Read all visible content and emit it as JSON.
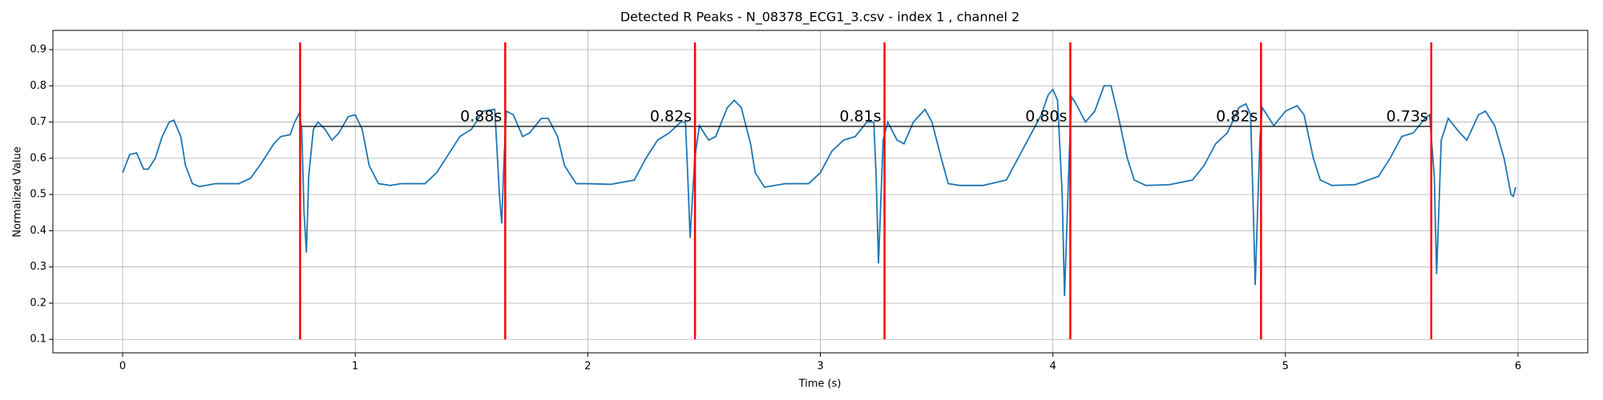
{
  "chart_data": {
    "type": "line",
    "title": "Detected R Peaks - N_08378_ECG1_3.csv - index 1 , channel 2",
    "xlabel": "Time (s)",
    "ylabel": "Normalized Value",
    "x": [
      0,
      0.03,
      0.06,
      0.09,
      0.11,
      0.14,
      0.17,
      0.2,
      0.22,
      0.25,
      0.27,
      0.3,
      0.33,
      0.4,
      0.5,
      0.55,
      0.6,
      0.65,
      0.68,
      0.72,
      0.74,
      0.76,
      0.77,
      0.78,
      0.79,
      0.8,
      0.82,
      0.84,
      0.87,
      0.9,
      0.93,
      0.97,
      1.0,
      1.03,
      1.06,
      1.1,
      1.15,
      1.2,
      1.3,
      1.35,
      1.4,
      1.45,
      1.5,
      1.55,
      1.6,
      1.61,
      1.62,
      1.63,
      1.64,
      1.65,
      1.68,
      1.72,
      1.75,
      1.8,
      1.83,
      1.87,
      1.9,
      1.95,
      2.0,
      2.1,
      2.2,
      2.25,
      2.3,
      2.35,
      2.4,
      2.42,
      2.43,
      2.44,
      2.46,
      2.48,
      2.52,
      2.55,
      2.6,
      2.63,
      2.66,
      2.7,
      2.72,
      2.76,
      2.85,
      2.95,
      3.0,
      3.05,
      3.1,
      3.15,
      3.2,
      3.23,
      3.24,
      3.25,
      3.27,
      3.29,
      3.33,
      3.36,
      3.4,
      3.45,
      3.48,
      3.52,
      3.55,
      3.6,
      3.7,
      3.8,
      3.85,
      3.9,
      3.95,
      3.98,
      4.0,
      4.02,
      4.04,
      4.05,
      4.07,
      4.08,
      4.1,
      4.14,
      4.18,
      4.22,
      4.25,
      4.28,
      4.32,
      4.35,
      4.4,
      4.5,
      4.6,
      4.65,
      4.7,
      4.75,
      4.8,
      4.83,
      4.85,
      4.86,
      4.87,
      4.89,
      4.9,
      4.95,
      5.0,
      5.05,
      5.08,
      5.12,
      5.15,
      5.2,
      5.3,
      5.4,
      5.45,
      5.5,
      5.55,
      5.6,
      5.62,
      5.64,
      5.65,
      5.67,
      5.7,
      5.75,
      5.78,
      5.83,
      5.86,
      5.9,
      5.94,
      5.97,
      5.98,
      5.99
    ],
    "values": [
      0.56,
      0.61,
      0.615,
      0.57,
      0.57,
      0.6,
      0.66,
      0.7,
      0.705,
      0.66,
      0.58,
      0.53,
      0.522,
      0.53,
      0.53,
      0.545,
      0.59,
      0.64,
      0.66,
      0.665,
      0.7,
      0.725,
      0.68,
      0.45,
      0.34,
      0.55,
      0.68,
      0.7,
      0.68,
      0.65,
      0.67,
      0.715,
      0.72,
      0.68,
      0.58,
      0.53,
      0.525,
      0.53,
      0.53,
      0.56,
      0.61,
      0.66,
      0.68,
      0.73,
      0.735,
      0.62,
      0.5,
      0.42,
      0.6,
      0.73,
      0.72,
      0.66,
      0.67,
      0.71,
      0.71,
      0.66,
      0.58,
      0.53,
      0.53,
      0.528,
      0.54,
      0.6,
      0.65,
      0.67,
      0.7,
      0.7,
      0.55,
      0.38,
      0.6,
      0.69,
      0.65,
      0.66,
      0.74,
      0.76,
      0.74,
      0.64,
      0.56,
      0.52,
      0.53,
      0.53,
      0.56,
      0.62,
      0.65,
      0.66,
      0.7,
      0.7,
      0.55,
      0.31,
      0.65,
      0.7,
      0.65,
      0.64,
      0.7,
      0.735,
      0.7,
      0.6,
      0.53,
      0.525,
      0.525,
      0.54,
      0.6,
      0.66,
      0.72,
      0.775,
      0.79,
      0.76,
      0.5,
      0.22,
      0.6,
      0.77,
      0.75,
      0.7,
      0.73,
      0.8,
      0.8,
      0.72,
      0.6,
      0.54,
      0.525,
      0.527,
      0.54,
      0.58,
      0.64,
      0.67,
      0.74,
      0.75,
      0.72,
      0.5,
      0.25,
      0.65,
      0.74,
      0.69,
      0.73,
      0.745,
      0.72,
      0.6,
      0.54,
      0.525,
      0.527,
      0.55,
      0.6,
      0.66,
      0.67,
      0.71,
      0.72,
      0.55,
      0.28,
      0.65,
      0.71,
      0.67,
      0.65,
      0.72,
      0.73,
      0.69,
      0.6,
      0.5,
      0.495,
      0.52
    ],
    "color": "#1f77b4",
    "peaks": [
      0.763,
      1.645,
      2.461,
      3.276,
      4.075,
      4.895,
      5.627
    ],
    "peak_color": "#ff0000",
    "peak_line_range": [
      0.1,
      0.92
    ],
    "interval_line_y": 0.688,
    "interval_labels": [
      "0.88s",
      "0.82s",
      "0.81s",
      "0.80s",
      "0.82s",
      "0.73s"
    ],
    "interval_label_y": 0.715,
    "xlim": [
      -0.3,
      6.3
    ],
    "ylim": [
      0.063,
      0.953
    ],
    "xticks": [
      0,
      1,
      2,
      3,
      4,
      5,
      6
    ],
    "yticks": [
      0.1,
      0.2,
      0.3,
      0.4,
      0.5,
      0.6,
      0.7,
      0.8,
      0.9
    ],
    "grid": true
  }
}
